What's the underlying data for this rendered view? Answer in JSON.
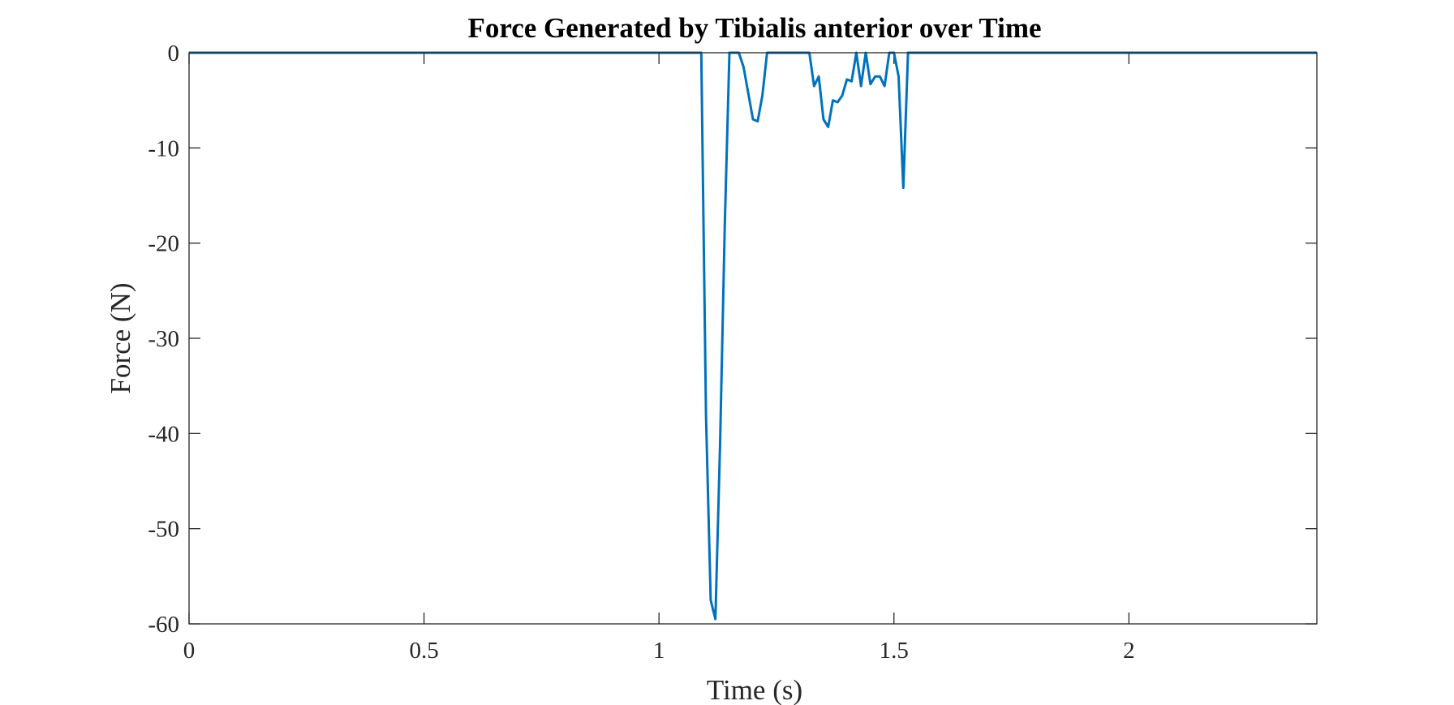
{
  "chart_data": {
    "type": "line",
    "title": "Force Generated by Tibialis anterior over Time",
    "xlabel": "Time (s)",
    "ylabel": "Force (N)",
    "xlim": [
      0,
      2.4
    ],
    "ylim": [
      -60,
      0
    ],
    "xticks": [
      0,
      0.5,
      1,
      1.5,
      2
    ],
    "xtick_labels": [
      "0",
      "0.5",
      "1",
      "1.5",
      "2"
    ],
    "yticks": [
      0,
      -10,
      -20,
      -30,
      -40,
      -50,
      -60
    ],
    "ytick_labels": [
      "0",
      "-10",
      "-20",
      "-30",
      "-40",
      "-50",
      "-60"
    ],
    "grid": false,
    "box": true,
    "line_color": "#0072BD",
    "series": [
      {
        "x": [
          0,
          1.09,
          1.1,
          1.11,
          1.12,
          1.13,
          1.14,
          1.15,
          1.17,
          1.18,
          1.2,
          1.21,
          1.22,
          1.23,
          1.25,
          1.32,
          1.33,
          1.34,
          1.35,
          1.36,
          1.37,
          1.38,
          1.39,
          1.4,
          1.41,
          1.42,
          1.43,
          1.44,
          1.45,
          1.46,
          1.47,
          1.48,
          1.49,
          1.5,
          1.51,
          1.52,
          1.53,
          2.4
        ],
        "y": [
          0,
          0,
          -38,
          -57.5,
          -59.5,
          -41,
          -18,
          0,
          0,
          -1.5,
          -7,
          -7.2,
          -4.5,
          0,
          0,
          0,
          -3.5,
          -2.5,
          -7,
          -7.8,
          -5,
          -5.2,
          -4.5,
          -2.8,
          -3,
          0,
          -3.5,
          0,
          -3.3,
          -2.5,
          -2.5,
          -3.5,
          0,
          0,
          -2.5,
          -14.2,
          0,
          0
        ]
      }
    ]
  }
}
